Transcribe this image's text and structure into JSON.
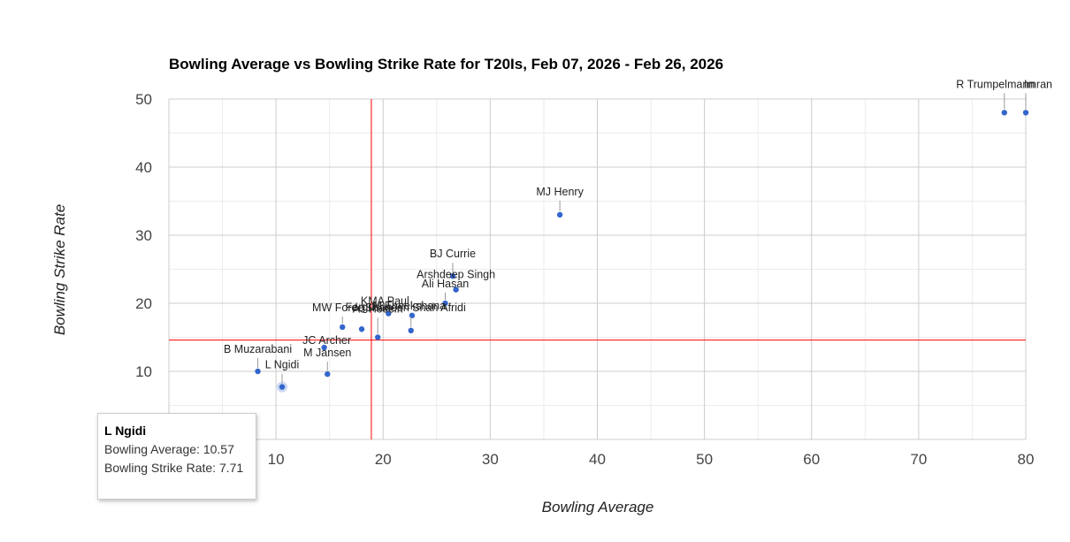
{
  "chart_data": {
    "type": "scatter",
    "title": "Bowling Average vs Bowling Strike Rate for T20Is, Feb 07, 2026 - Feb 26, 2026",
    "xlabel": "Bowling Average",
    "ylabel": "Bowling Strike Rate",
    "xlim": [
      0,
      80
    ],
    "ylim": [
      0,
      50
    ],
    "xticks": [
      10,
      20,
      30,
      40,
      50,
      60,
      70,
      80
    ],
    "yticks": [
      10,
      20,
      30,
      40,
      50
    ],
    "grid": true,
    "reference_lines": {
      "x": 18.9,
      "y": 14.6,
      "color": "#ff0000"
    },
    "point_color": "#3366cc",
    "points": [
      {
        "name": "R Trumpelmann",
        "x": 78.0,
        "y": 48.0
      },
      {
        "name": "Imran",
        "x": 80.0,
        "y": 48.0
      },
      {
        "name": "MJ Henry",
        "x": 36.5,
        "y": 33.0
      },
      {
        "name": "BJ Currie",
        "x": 26.5,
        "y": 24.0
      },
      {
        "name": "Arshdeep Singh",
        "x": 26.8,
        "y": 22.0
      },
      {
        "name": "Ali Hasan",
        "x": 25.8,
        "y": 20.0
      },
      {
        "name": "KMA Paul",
        "x": 20.5,
        "y": 18.5
      },
      {
        "name": "M Theekshana",
        "x": 22.7,
        "y": 18.2
      },
      {
        "name": "Shaheen Shah Afridi",
        "x": 22.6,
        "y": 16.0
      },
      {
        "name": "MW Forde",
        "x": 16.2,
        "y": 16.5
      },
      {
        "name": "Ferguson",
        "x": 18.0,
        "y": 16.2
      },
      {
        "name": "AJ Hosein",
        "x": 19.5,
        "y": 15.0
      },
      {
        "name": "JC Archer",
        "x": 14.5,
        "y": 13.5
      },
      {
        "name": "M Jansen",
        "x": 14.8,
        "y": 9.6
      },
      {
        "name": "B Muzarabani",
        "x": 8.3,
        "y": 10.0
      },
      {
        "name": "L Ngidi",
        "x": 10.57,
        "y": 7.71
      }
    ],
    "tooltip": {
      "name": "L Ngidi",
      "lines": [
        "Bowling Average: 10.57",
        "Bowling Strike Rate: 7.71"
      ]
    }
  }
}
